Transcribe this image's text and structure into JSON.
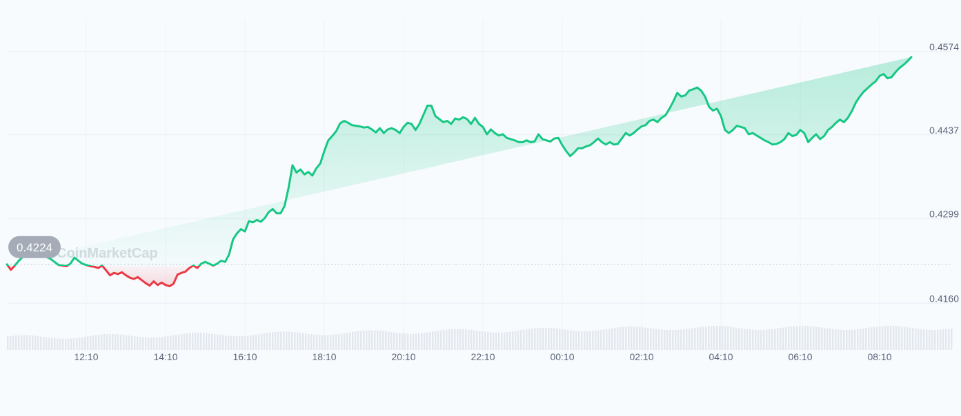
{
  "chart_data": {
    "type": "area",
    "watermark": "CoinMarketCap",
    "x_tick_labels": [
      "12:10",
      "14:10",
      "16:10",
      "18:10",
      "20:10",
      "22:10",
      "00:10",
      "02:10",
      "04:10",
      "06:10",
      "08:10"
    ],
    "y_tick_labels": [
      "0.4574",
      "0.4437",
      "0.4299",
      "0.4160"
    ],
    "y_ticks": [
      0.4574,
      0.4437,
      0.4299,
      0.416
    ],
    "ylim": [
      0.4149,
      0.4609
    ],
    "baseline": {
      "value": 0.4224,
      "label": "0.4224"
    },
    "colors": {
      "up_line": "#16c784",
      "down_line": "#ea3943",
      "up_fill": "#16c784",
      "down_fill": "#ea3943",
      "badge": "#a5acb8"
    },
    "grid": true,
    "series": [
      {
        "x_hours_from_start": [
          0.0,
          0.1,
          0.2,
          0.3,
          0.4,
          0.5,
          0.6,
          0.7,
          0.8,
          0.9,
          1.0,
          1.1,
          1.2,
          1.3,
          1.4,
          1.5,
          1.6,
          1.7,
          1.8,
          1.9,
          2.0,
          2.1,
          2.2,
          2.3,
          2.4,
          2.5,
          2.6,
          2.7,
          2.8,
          2.9,
          3.0,
          3.1,
          3.2,
          3.3,
          3.4,
          3.5,
          3.6,
          3.7,
          3.8,
          3.9,
          4.0,
          4.1,
          4.2,
          4.3,
          4.4,
          4.5,
          4.6,
          4.7,
          4.8,
          4.9,
          5.0,
          5.1,
          5.2,
          5.3,
          5.4,
          5.5,
          5.6,
          5.7,
          5.8,
          5.9,
          6.0,
          6.1,
          6.2,
          6.3,
          6.4,
          6.5,
          6.6,
          6.7,
          6.8,
          6.9,
          7.0,
          7.1,
          7.2,
          7.3,
          7.4,
          7.5,
          7.6,
          7.7,
          7.8,
          7.9,
          8.0,
          8.1,
          8.2,
          8.3,
          8.4,
          8.5,
          8.6,
          8.7,
          8.8,
          8.9,
          9.0,
          9.1,
          9.2,
          9.3,
          9.4,
          9.5,
          9.6,
          9.7,
          9.8,
          9.9,
          10.0,
          10.1,
          10.2,
          10.3,
          10.4,
          10.5,
          10.6,
          10.7,
          10.8,
          10.9,
          11.0,
          11.1,
          11.2,
          11.3,
          11.4,
          11.5,
          11.6,
          11.7,
          11.8,
          11.9,
          12.0,
          12.1,
          12.2,
          12.3,
          12.4,
          12.5,
          12.6,
          12.7,
          12.8,
          12.9,
          13.0,
          13.1,
          13.2,
          13.3,
          13.4,
          13.5,
          13.6,
          13.7,
          13.8,
          13.9,
          14.0,
          14.1,
          14.2,
          14.3,
          14.4,
          14.5,
          14.6,
          14.7,
          14.8,
          14.9,
          15.0,
          15.1,
          15.2,
          15.3,
          15.4,
          15.5,
          15.6,
          15.7,
          15.8,
          15.9,
          16.0,
          16.1,
          16.2,
          16.3,
          16.4,
          16.5,
          16.6,
          16.7,
          16.8,
          16.9,
          17.0,
          17.1,
          17.2,
          17.3,
          17.4,
          17.5,
          17.6,
          17.7,
          17.8,
          17.9,
          18.0,
          18.1,
          18.2,
          18.3,
          18.4,
          18.5,
          18.6,
          18.7,
          18.8,
          18.9,
          19.0,
          19.1,
          19.2,
          19.3,
          19.4,
          19.5,
          19.6,
          19.7,
          19.8,
          19.9,
          20.0,
          20.1,
          20.2,
          20.3,
          20.4,
          20.5,
          20.6,
          20.7,
          20.8,
          20.9,
          21.0,
          21.1,
          21.2,
          21.3,
          21.4,
          21.5,
          21.6,
          21.7,
          21.8,
          21.9,
          22.0,
          22.1,
          22.2,
          22.3,
          22.4,
          22.5,
          22.6,
          22.7,
          22.8,
          22.9,
          23.0,
          23.1,
          23.2,
          23.3,
          23.4,
          23.5,
          23.6,
          23.7,
          23.8,
          23.9
        ],
        "values": [
          0.4224,
          0.4215,
          0.4222,
          0.423,
          0.4236,
          0.4242,
          0.4246,
          0.425,
          0.4245,
          0.424,
          0.4236,
          0.4233,
          0.4228,
          0.4223,
          0.4222,
          0.4221,
          0.4225,
          0.4235,
          0.423,
          0.4225,
          0.4223,
          0.4221,
          0.422,
          0.4218,
          0.4222,
          0.4214,
          0.4206,
          0.421,
          0.4208,
          0.4211,
          0.4206,
          0.4202,
          0.42,
          0.4203,
          0.4198,
          0.4193,
          0.4189,
          0.4196,
          0.419,
          0.4194,
          0.419,
          0.4188,
          0.4192,
          0.4207,
          0.421,
          0.4212,
          0.4218,
          0.4222,
          0.4218,
          0.4225,
          0.4228,
          0.4225,
          0.4222,
          0.4225,
          0.423,
          0.4228,
          0.424,
          0.4265,
          0.4275,
          0.4282,
          0.4278,
          0.4295,
          0.4293,
          0.4297,
          0.4294,
          0.43,
          0.431,
          0.4315,
          0.4308,
          0.4308,
          0.432,
          0.435,
          0.4387,
          0.4375,
          0.438,
          0.4372,
          0.4376,
          0.437,
          0.4382,
          0.439,
          0.441,
          0.4428,
          0.4435,
          0.4443,
          0.4456,
          0.446,
          0.4457,
          0.4453,
          0.4452,
          0.4451,
          0.4449,
          0.445,
          0.4446,
          0.4441,
          0.4448,
          0.444,
          0.4446,
          0.4448,
          0.4445,
          0.444,
          0.445,
          0.4457,
          0.4455,
          0.4445,
          0.4455,
          0.447,
          0.4485,
          0.4485,
          0.4468,
          0.4463,
          0.4458,
          0.446,
          0.4455,
          0.4464,
          0.4462,
          0.4466,
          0.4463,
          0.4455,
          0.4465,
          0.4455,
          0.445,
          0.4438,
          0.4446,
          0.444,
          0.4436,
          0.4438,
          0.4432,
          0.443,
          0.4428,
          0.4425,
          0.4425,
          0.4428,
          0.4425,
          0.4426,
          0.4438,
          0.443,
          0.4428,
          0.4426,
          0.4431,
          0.4432,
          0.442,
          0.441,
          0.4402,
          0.4408,
          0.4415,
          0.4415,
          0.4418,
          0.442,
          0.4425,
          0.4431,
          0.4425,
          0.4421,
          0.4425,
          0.4421,
          0.4422,
          0.4431,
          0.444,
          0.4436,
          0.444,
          0.4446,
          0.4451,
          0.4453,
          0.446,
          0.4462,
          0.4458,
          0.4465,
          0.4469,
          0.448,
          0.4492,
          0.4506,
          0.45,
          0.4502,
          0.451,
          0.4512,
          0.4515,
          0.451,
          0.45,
          0.4483,
          0.4477,
          0.448,
          0.4468,
          0.4445,
          0.444,
          0.4445,
          0.4452,
          0.445,
          0.4448,
          0.4438,
          0.444,
          0.4436,
          0.4432,
          0.4428,
          0.4425,
          0.4421,
          0.4422,
          0.4425,
          0.443,
          0.444,
          0.4435,
          0.4437,
          0.4445,
          0.444,
          0.4425,
          0.4432,
          0.4438,
          0.443,
          0.4435,
          0.4445,
          0.445,
          0.4457,
          0.4462,
          0.4458,
          0.4465,
          0.4476,
          0.449,
          0.45,
          0.4508,
          0.4514,
          0.452,
          0.4525,
          0.4534,
          0.4537,
          0.453,
          0.4532,
          0.454,
          0.4547,
          0.4552,
          0.4558,
          0.4565
        ]
      }
    ]
  }
}
